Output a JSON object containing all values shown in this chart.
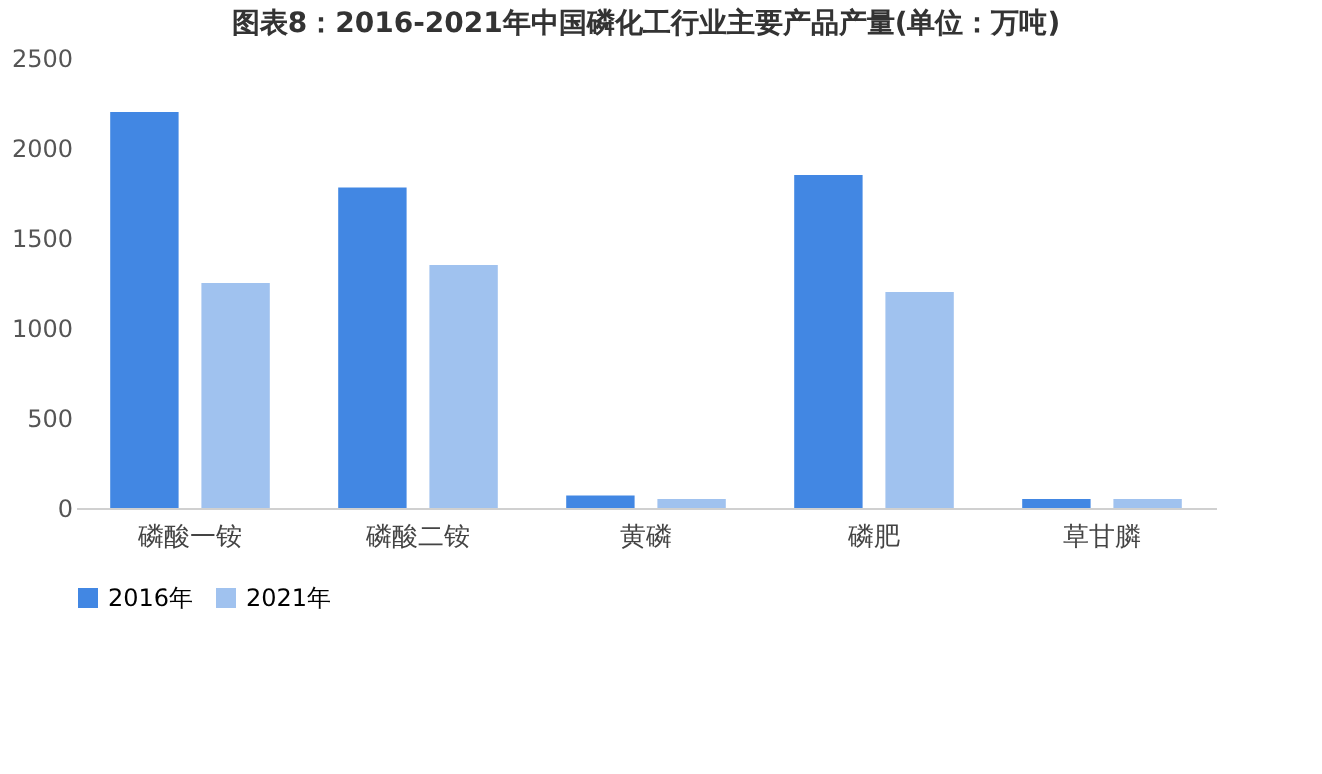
{
  "chart_data": {
    "type": "bar",
    "title": "图表8：2016-2021年中国磷化工行业主要产品产量(单位：万吨)",
    "categories": [
      "磷酸一铵",
      "磷酸二铵",
      "黄磷",
      "磷肥",
      "草甘膦"
    ],
    "series": [
      {
        "name": "2016年",
        "color": "#4287e3",
        "values": [
          2200,
          1780,
          70,
          1850,
          50
        ]
      },
      {
        "name": "2021年",
        "color": "#a0c2ef",
        "values": [
          1250,
          1350,
          50,
          1200,
          50
        ]
      }
    ],
    "ylim": [
      0,
      2500
    ],
    "yticks": [
      0,
      500,
      1000,
      1500,
      2000,
      2500
    ],
    "grid": false,
    "legend": "bottom"
  }
}
